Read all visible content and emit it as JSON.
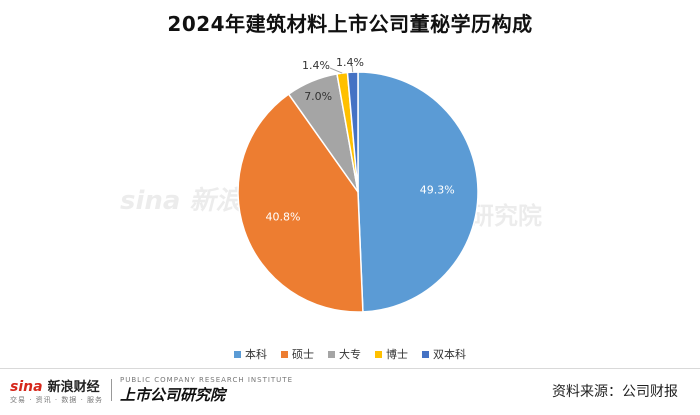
{
  "chart_data": {
    "type": "pie",
    "title": "2024年建筑材料上市公司董秘学历构成",
    "categories": [
      "本科",
      "硕士",
      "大专",
      "博士",
      "双本科"
    ],
    "values": [
      49.3,
      40.8,
      7.0,
      1.4,
      1.4
    ],
    "labels": [
      "49.3%",
      "40.8%",
      "7.0%",
      "1.4%",
      "1.4%"
    ],
    "colors": [
      "#5b9bd5",
      "#ed7d31",
      "#a5a5a5",
      "#ffc000",
      "#4472c4"
    ],
    "legend_position": "bottom"
  },
  "source": "资料来源：公司财报",
  "branding": {
    "sina_logo": "sina",
    "sina_name": "新浪财经",
    "sina_tagline": "交易 · 资讯 · 数据 · 服务",
    "institute_name": "上市公司研究院",
    "institute_en": "PUBLIC COMPANY RESEARCH INSTITUTE"
  },
  "watermark": {
    "left": "sina 新浪",
    "right": "研究院"
  }
}
